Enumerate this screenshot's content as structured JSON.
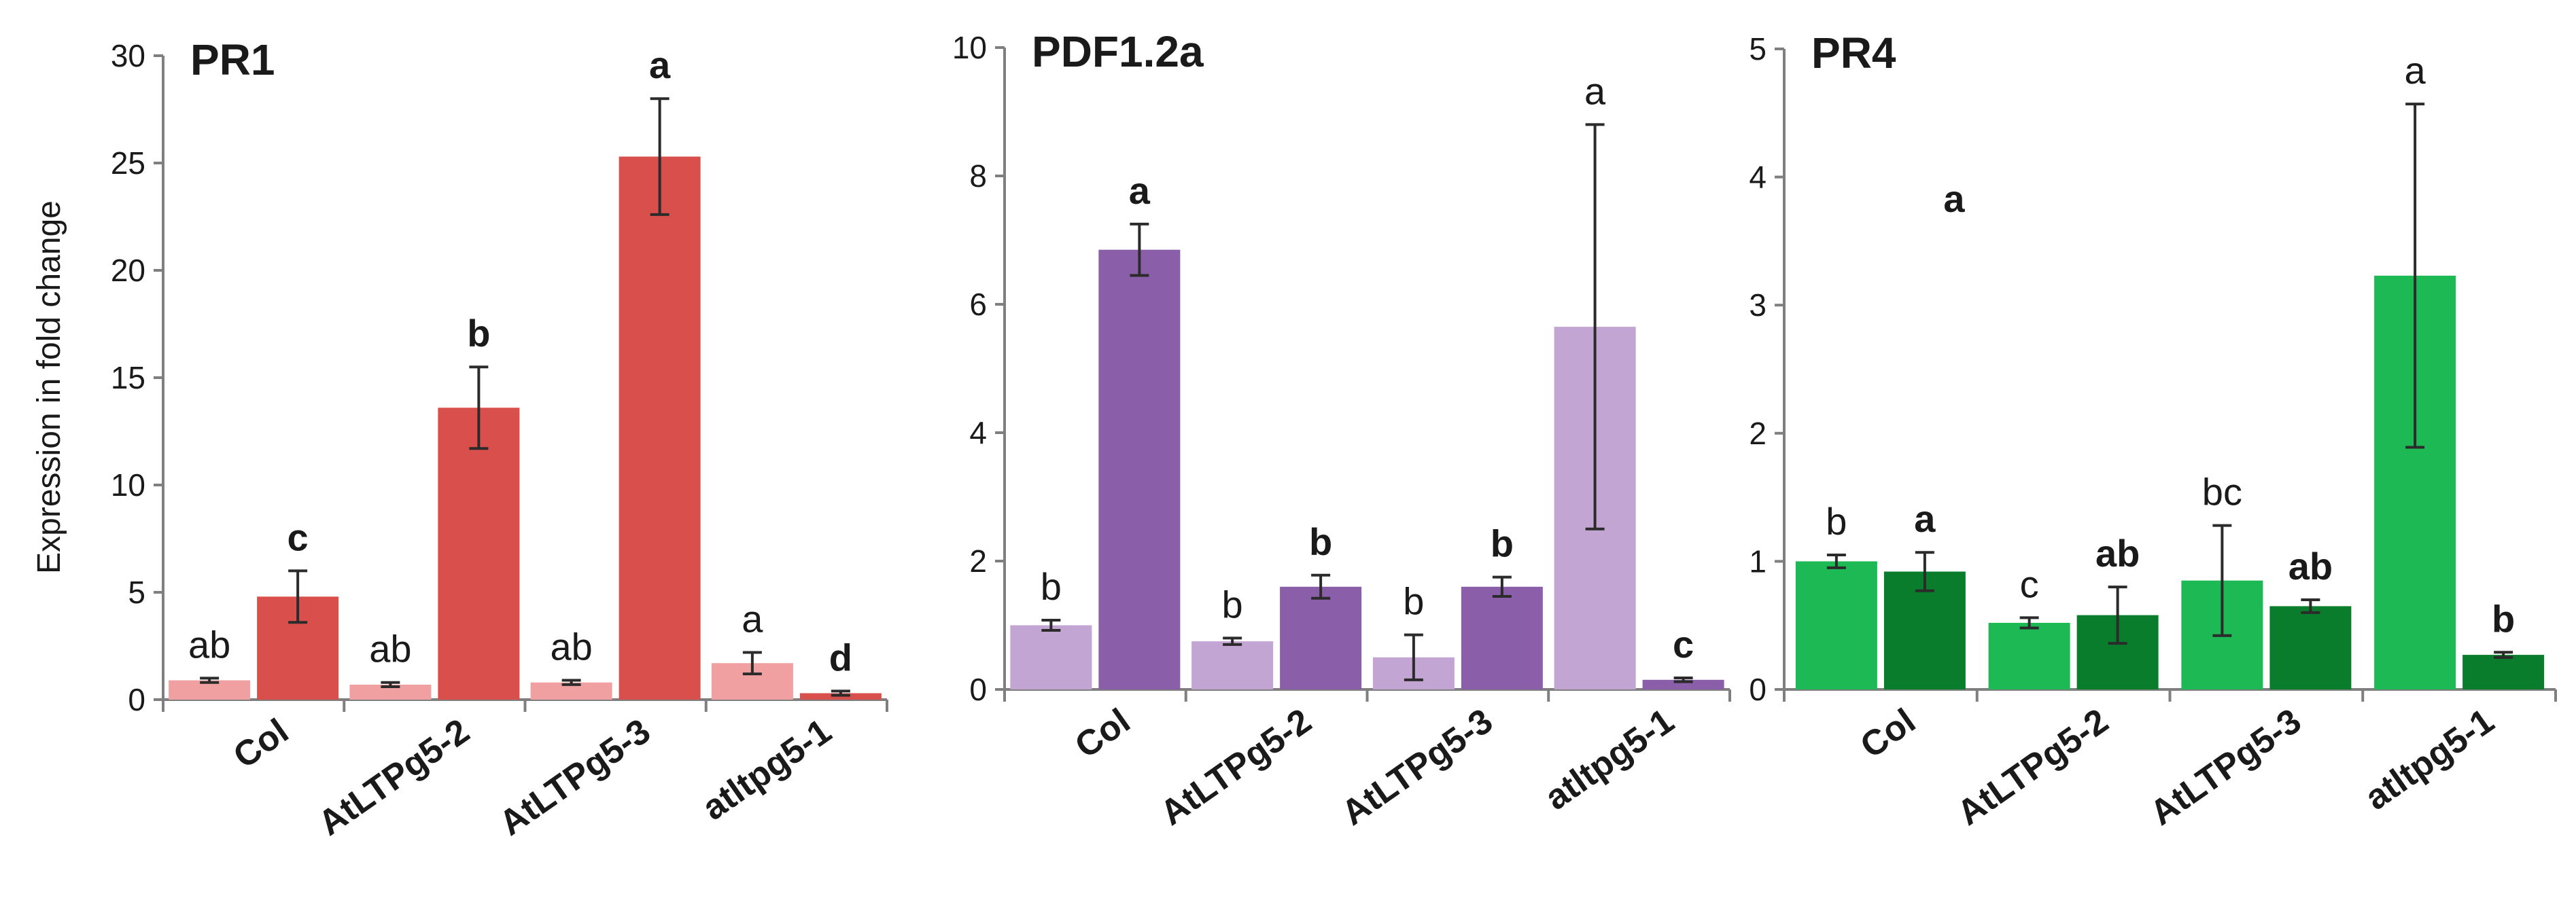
{
  "ylabel": "Expression in fold change",
  "chart_data": [
    {
      "type": "bar",
      "title": "PR1",
      "categories": [
        "Col",
        "AtLTPg5-2",
        "AtLTPg5-3",
        "atltpg5-1"
      ],
      "ylim": [
        0,
        30
      ],
      "yticks": [
        0,
        5,
        10,
        15,
        20,
        25,
        30
      ],
      "colors": [
        "#f0a0a0",
        "#d94f4c"
      ],
      "series": [
        {
          "values": [
            0.9,
            0.7,
            0.8,
            1.7
          ],
          "errors": [
            0.1,
            0.1,
            0.1,
            0.5
          ],
          "letters": [
            "ab",
            "ab",
            "ab",
            "a"
          ],
          "bold_letters": false
        },
        {
          "values": [
            4.8,
            13.6,
            25.3,
            0.3
          ],
          "errors": [
            1.2,
            1.9,
            2.7,
            0.1
          ],
          "letters": [
            "c",
            "b",
            "a",
            "d"
          ],
          "bold_letters": true
        }
      ]
    },
    {
      "type": "bar",
      "title": "PDF1.2a",
      "categories": [
        "Col",
        "AtLTPg5-2",
        "AtLTPg5-3",
        "atltpg5-1"
      ],
      "ylim": [
        0,
        10
      ],
      "yticks": [
        0,
        2,
        4,
        6,
        8,
        10
      ],
      "colors": [
        "#c2a5d3",
        "#8a5ea8"
      ],
      "series": [
        {
          "values": [
            1.0,
            0.75,
            0.5,
            5.65
          ],
          "errors": [
            0.08,
            0.05,
            0.35,
            3.15
          ],
          "letters": [
            "b",
            "b",
            "b",
            "a"
          ],
          "bold_letters": false
        },
        {
          "values": [
            6.85,
            1.6,
            1.6,
            0.15
          ],
          "errors": [
            0.4,
            0.18,
            0.15,
            0.03
          ],
          "letters": [
            "a",
            "b",
            "b",
            "c"
          ],
          "bold_letters": true
        }
      ]
    },
    {
      "type": "bar",
      "title": "PR4",
      "categories": [
        "Col",
        "AtLTPg5-2",
        "AtLTPg5-3",
        "atltpg5-1"
      ],
      "ylim": [
        0,
        5
      ],
      "yticks": [
        0,
        1,
        2,
        3,
        4,
        5
      ],
      "colors": [
        "#1db954",
        "#0a7d2c"
      ],
      "series": [
        {
          "values": [
            1.0,
            0.52,
            0.85,
            3.23
          ],
          "errors": [
            0.05,
            0.04,
            0.43,
            1.34
          ],
          "letters": [
            "b",
            "c",
            "bc",
            "a"
          ],
          "bold_letters": false
        },
        {
          "values": [
            0.92,
            0.58,
            0.65,
            0.27
          ],
          "errors": [
            0.15,
            0.22,
            0.05,
            0.02
          ],
          "letters": [
            "a",
            "ab",
            "ab",
            "b"
          ],
          "bold_letters": true
        }
      ],
      "extra_letter": "a"
    }
  ]
}
